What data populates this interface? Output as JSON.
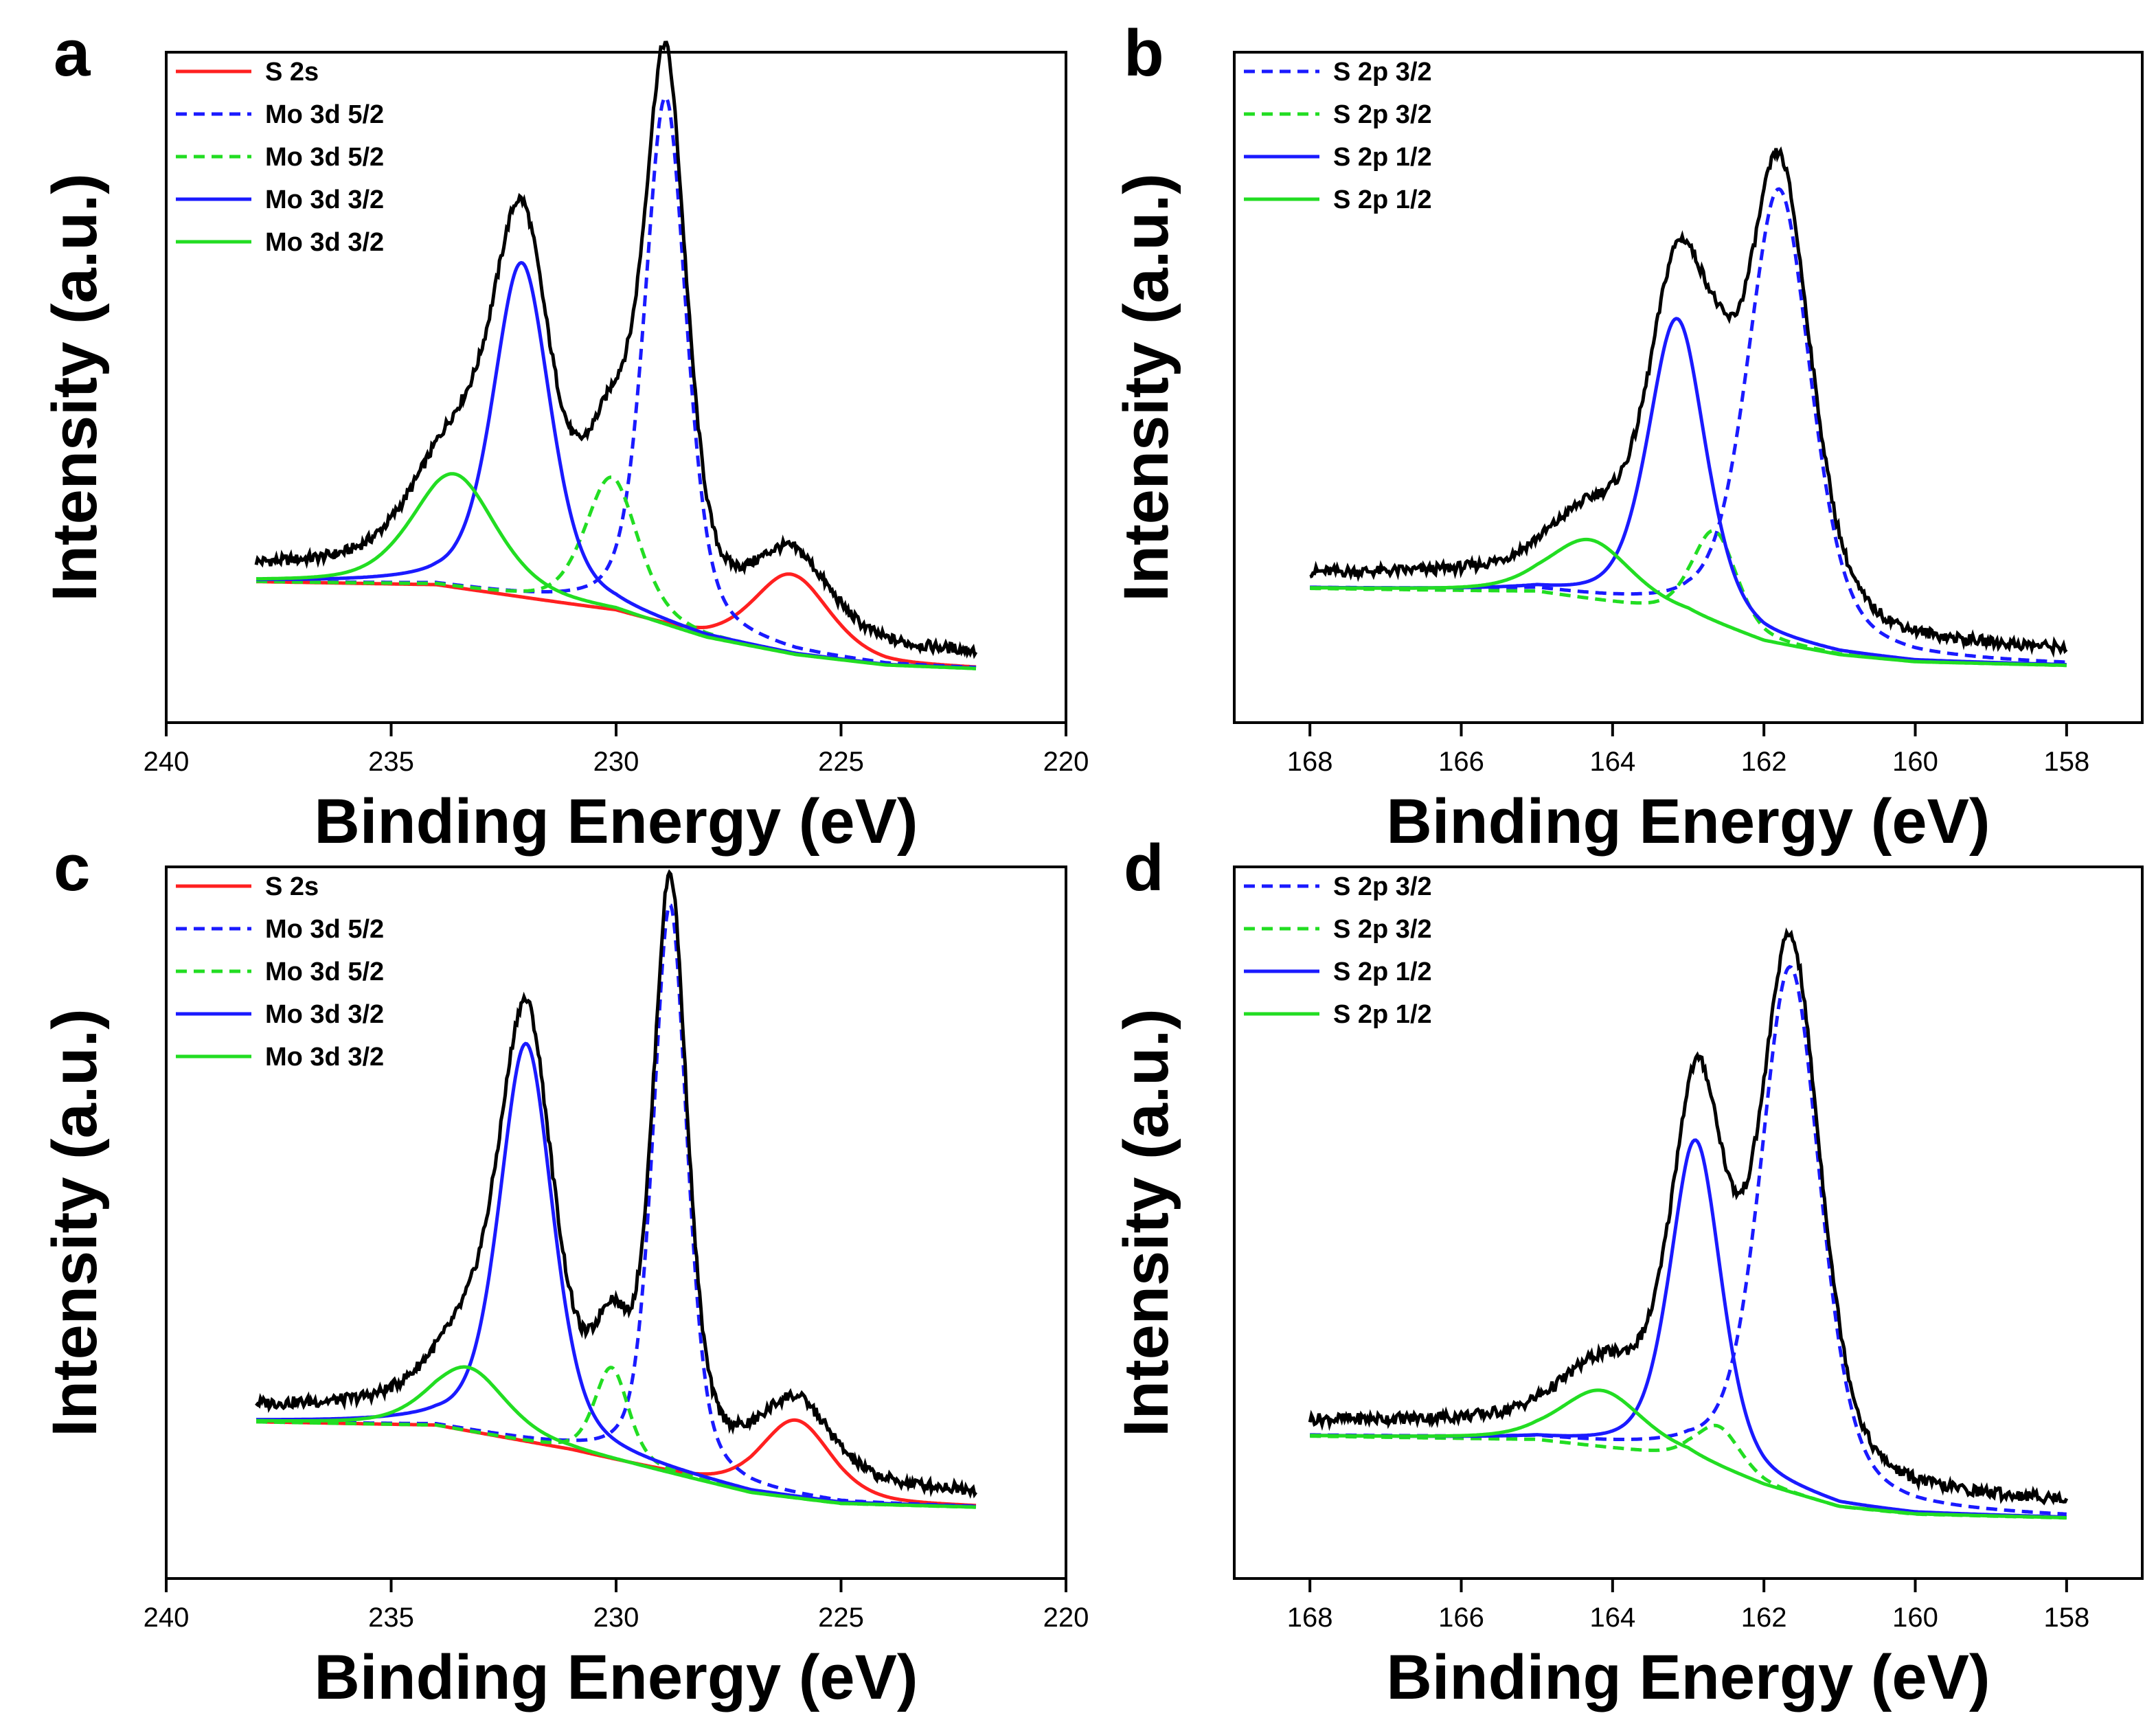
{
  "chart_data": [
    {
      "type": "line",
      "panel": "a",
      "xlabel": "Binding Energy (eV)",
      "ylabel": "Intensity (a.u.)",
      "xlim": [
        240,
        220
      ],
      "ylim": [
        0,
        100
      ],
      "xticks": [
        240,
        235,
        230,
        225,
        220
      ],
      "yticks_shown": false,
      "legend_position": "top-left",
      "legend": [
        {
          "label": "S 2s",
          "color": "#ff2020",
          "style": "solid"
        },
        {
          "label": "Mo 3d 5/2",
          "color": "#1a1aff",
          "style": "dashed"
        },
        {
          "label": "Mo 3d 5/2",
          "color": "#22dd22",
          "style": "dashed"
        },
        {
          "label": "Mo 3d 3/2",
          "color": "#1a1aff",
          "style": "solid"
        },
        {
          "label": "Mo 3d 3/2",
          "color": "#22dd22",
          "style": "solid"
        }
      ],
      "xrange": [
        238,
        222
      ],
      "background": {
        "x": [
          238,
          234,
          230,
          228,
          226,
          224,
          222
        ],
        "y": [
          21,
          20.5,
          16.5,
          12.5,
          10,
          8.5,
          8
        ]
      },
      "peaks": [
        {
          "name": "S 2s",
          "color": "#ff2020",
          "style": "solid",
          "center": 226.1,
          "height": 12,
          "fwhm": 2.0
        },
        {
          "name": "Mo 3d 5/2",
          "color": "#1a1aff",
          "style": "dashed",
          "center": 228.9,
          "height": 79,
          "fwhm": 1.1
        },
        {
          "name": "Mo 3d 5/2",
          "color": "#22dd22",
          "style": "dashed",
          "center": 230.1,
          "height": 20,
          "fwhm": 1.4
        },
        {
          "name": "Mo 3d 3/2",
          "color": "#1a1aff",
          "style": "solid",
          "center": 232.1,
          "height": 50,
          "fwhm": 1.5
        },
        {
          "name": "Mo 3d 3/2",
          "color": "#22dd22",
          "style": "solid",
          "center": 233.6,
          "height": 17,
          "fwhm": 2.2
        }
      ],
      "envelope_color": "#000000"
    },
    {
      "type": "line",
      "panel": "b",
      "xlabel": "Binding Energy (eV)",
      "ylabel": "Intensity (a.u.)",
      "xlim": [
        169,
        157
      ],
      "ylim": [
        0,
        100
      ],
      "xticks": [
        168,
        166,
        164,
        162,
        160,
        158
      ],
      "yticks_shown": false,
      "legend_position": "top-left",
      "legend": [
        {
          "label": "S 2p 3/2",
          "color": "#1a1aff",
          "style": "dashed"
        },
        {
          "label": "S 2p 3/2",
          "color": "#22dd22",
          "style": "dashed"
        },
        {
          "label": "S 2p 1/2",
          "color": "#1a1aff",
          "style": "solid"
        },
        {
          "label": "S 2p 1/2",
          "color": "#22dd22",
          "style": "solid"
        }
      ],
      "xrange": [
        168,
        158
      ],
      "background": {
        "x": [
          168,
          165,
          163,
          162,
          161,
          160,
          158
        ],
        "y": [
          20,
          19.5,
          16,
          12,
          10,
          9,
          8.5
        ]
      },
      "peaks": [
        {
          "name": "S 2p 3/2",
          "color": "#1a1aff",
          "style": "dashed",
          "center": 161.8,
          "height": 68,
          "fwhm": 1.0
        },
        {
          "name": "S 2p 3/2",
          "color": "#22dd22",
          "style": "dashed",
          "center": 162.65,
          "height": 14,
          "fwhm": 0.7
        },
        {
          "name": "S 2p 1/2",
          "color": "#1a1aff",
          "style": "solid",
          "center": 163.15,
          "height": 44,
          "fwhm": 0.9
        },
        {
          "name": "S 2p 1/2",
          "color": "#22dd22",
          "style": "solid",
          "center": 164.3,
          "height": 9,
          "fwhm": 1.3
        }
      ],
      "envelope_color": "#000000"
    },
    {
      "type": "line",
      "panel": "c",
      "xlabel": "Binding Energy (eV)",
      "ylabel": "Intensity (a.u.)",
      "xlim": [
        240,
        220
      ],
      "ylim": [
        0,
        100
      ],
      "xticks": [
        240,
        235,
        230,
        225,
        220
      ],
      "yticks_shown": false,
      "legend_position": "top-left",
      "legend": [
        {
          "label": "S 2s",
          "color": "#ff2020",
          "style": "solid"
        },
        {
          "label": "Mo 3d 5/2",
          "color": "#1a1aff",
          "style": "dashed"
        },
        {
          "label": "Mo 3d 5/2",
          "color": "#22dd22",
          "style": "dashed"
        },
        {
          "label": "Mo 3d 3/2",
          "color": "#1a1aff",
          "style": "solid"
        },
        {
          "label": "Mo 3d 3/2",
          "color": "#22dd22",
          "style": "solid"
        }
      ],
      "xrange": [
        238,
        222
      ],
      "background": {
        "x": [
          238,
          234,
          231,
          229,
          227,
          225,
          222
        ],
        "y": [
          22,
          21.5,
          18,
          15,
          12,
          10.5,
          10
        ]
      },
      "peaks": [
        {
          "name": "S 2s",
          "color": "#ff2020",
          "style": "solid",
          "center": 226.0,
          "height": 11,
          "fwhm": 1.9
        },
        {
          "name": "Mo 3d 5/2",
          "color": "#1a1aff",
          "style": "dashed",
          "center": 228.8,
          "height": 80,
          "fwhm": 0.9
        },
        {
          "name": "Mo 3d 5/2",
          "color": "#22dd22",
          "style": "dashed",
          "center": 230.1,
          "height": 13,
          "fwhm": 0.9
        },
        {
          "name": "Mo 3d 3/2",
          "color": "#1a1aff",
          "style": "solid",
          "center": 232.0,
          "height": 56,
          "fwhm": 1.4
        },
        {
          "name": "Mo 3d 3/2",
          "color": "#22dd22",
          "style": "solid",
          "center": 233.3,
          "height": 9,
          "fwhm": 2.0
        }
      ],
      "envelope_color": "#000000"
    },
    {
      "type": "line",
      "panel": "d",
      "xlabel": "Binding Energy (eV)",
      "ylabel": "Intensity (a.u.)",
      "xlim": [
        169,
        157
      ],
      "ylim": [
        0,
        100
      ],
      "xticks": [
        168,
        166,
        164,
        162,
        160,
        158
      ],
      "yticks_shown": false,
      "legend_position": "top-left",
      "legend": [
        {
          "label": "S 2p 3/2",
          "color": "#1a1aff",
          "style": "dashed"
        },
        {
          "label": "S 2p 3/2",
          "color": "#22dd22",
          "style": "dashed"
        },
        {
          "label": "S 2p 1/2",
          "color": "#1a1aff",
          "style": "solid"
        },
        {
          "label": "S 2p 1/2",
          "color": "#22dd22",
          "style": "solid"
        }
      ],
      "xrange": [
        168,
        158
      ],
      "background": {
        "x": [
          168,
          165,
          163,
          162,
          161,
          160,
          158
        ],
        "y": [
          20,
          19.5,
          17,
          13,
          10,
          9,
          8.5
        ]
      },
      "peaks": [
        {
          "name": "S 2p 3/2",
          "color": "#1a1aff",
          "style": "dashed",
          "center": 161.65,
          "height": 74,
          "fwhm": 0.95
        },
        {
          "name": "S 2p 3/2",
          "color": "#22dd22",
          "style": "dashed",
          "center": 162.6,
          "height": 6,
          "fwhm": 0.7
        },
        {
          "name": "S 2p 1/2",
          "color": "#1a1aff",
          "style": "solid",
          "center": 162.9,
          "height": 45,
          "fwhm": 0.8
        },
        {
          "name": "S 2p 1/2",
          "color": "#22dd22",
          "style": "solid",
          "center": 164.15,
          "height": 8,
          "fwhm": 1.3
        }
      ],
      "envelope_color": "#000000"
    }
  ]
}
